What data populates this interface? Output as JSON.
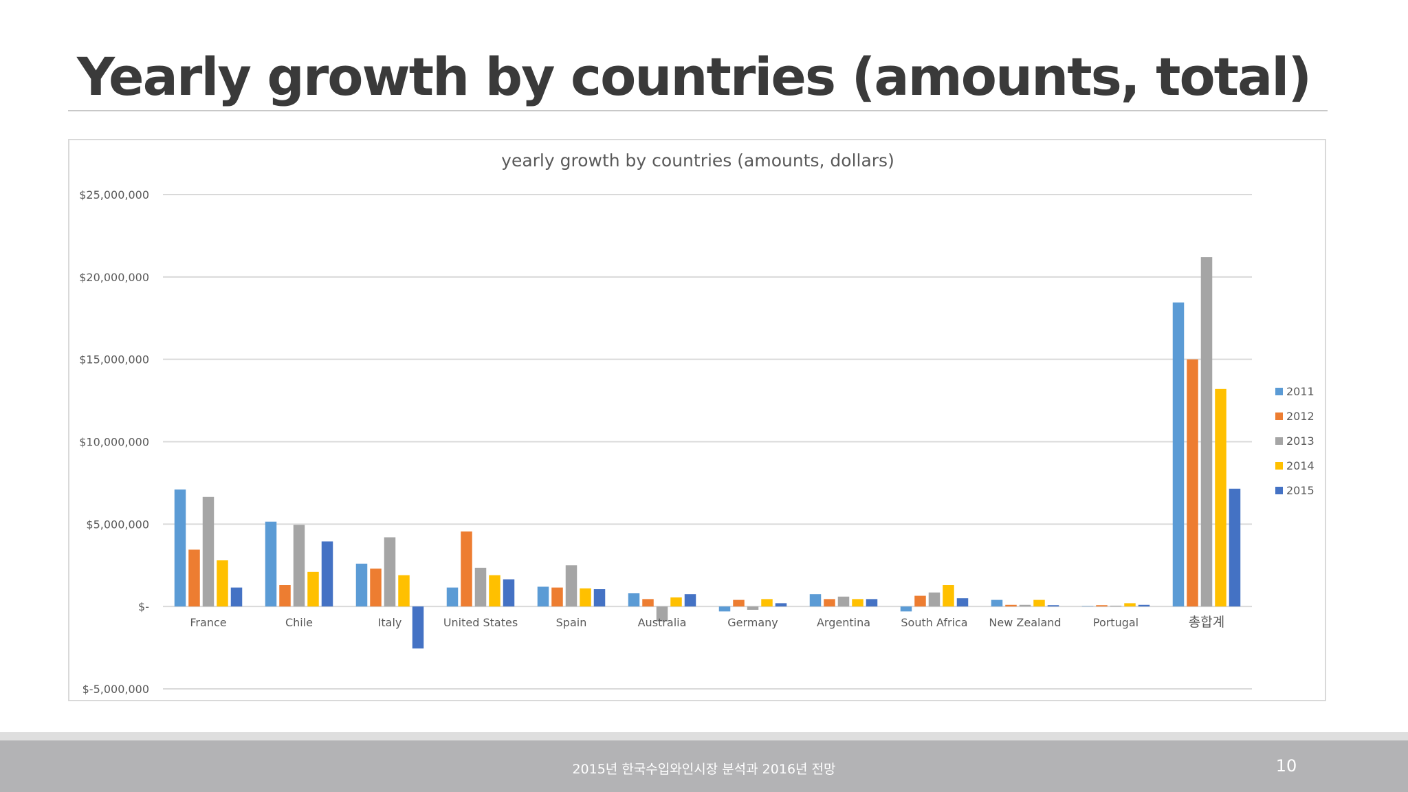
{
  "slide": {
    "title": "Yearly growth by countries (amounts, total)",
    "footer": "2015년 한국수입와인시장 분석과 2016년 전망",
    "page_number": "10"
  },
  "colors": {
    "2011": "#5b9bd5",
    "2012": "#ed7d31",
    "2013": "#a5a5a5",
    "2014": "#ffc000",
    "2015": "#4472c4"
  },
  "chart_data": {
    "type": "bar",
    "title": "yearly growth by countries (amounts, dollars)",
    "categories": [
      "France",
      "Chile",
      "Italy",
      "United States",
      "Spain",
      "Australia",
      "Germany",
      "Argentina",
      "South Africa",
      "New Zealand",
      "Portugal",
      "총합계"
    ],
    "series": [
      {
        "name": "2011",
        "color": "#5b9bd5",
        "values": [
          7100000,
          5150000,
          2600000,
          1150000,
          1200000,
          800000,
          -300000,
          750000,
          -300000,
          400000,
          20000,
          18450000
        ]
      },
      {
        "name": "2012",
        "color": "#ed7d31",
        "values": [
          3450000,
          1300000,
          2300000,
          4550000,
          1150000,
          450000,
          400000,
          450000,
          650000,
          100000,
          80000,
          15000000
        ]
      },
      {
        "name": "2013",
        "color": "#a5a5a5",
        "values": [
          6650000,
          4950000,
          4200000,
          2350000,
          2500000,
          -900000,
          -200000,
          600000,
          850000,
          100000,
          50000,
          21200000
        ]
      },
      {
        "name": "2014",
        "color": "#ffc000",
        "values": [
          2800000,
          2100000,
          1900000,
          1900000,
          1100000,
          550000,
          450000,
          450000,
          1300000,
          400000,
          200000,
          13200000
        ]
      },
      {
        "name": "2015",
        "color": "#4472c4",
        "values": [
          1150000,
          3950000,
          -2550000,
          1650000,
          1050000,
          750000,
          200000,
          450000,
          500000,
          80000,
          100000,
          7150000
        ]
      }
    ],
    "y_ticks": [
      {
        "value": 25000000,
        "label": "$25,000,000"
      },
      {
        "value": 20000000,
        "label": "$20,000,000"
      },
      {
        "value": 15000000,
        "label": "$15,000,000"
      },
      {
        "value": 10000000,
        "label": "$10,000,000"
      },
      {
        "value": 5000000,
        "label": "$5,000,000"
      },
      {
        "value": 0,
        "label": "$-"
      },
      {
        "value": -5000000,
        "label": "$-5,000,000"
      }
    ],
    "ylim": [
      -5000000,
      25000000
    ],
    "grid": true,
    "legend_position": "right"
  }
}
